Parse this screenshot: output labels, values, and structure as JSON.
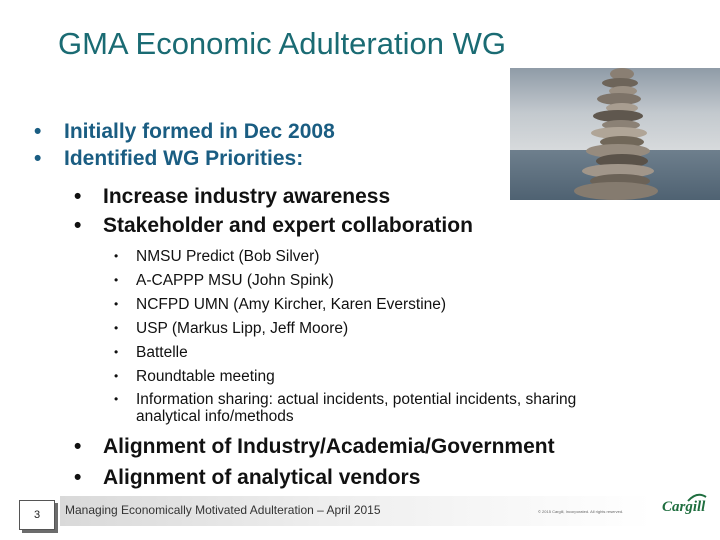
{
  "title": "GMA Economic Adulteration WG",
  "level1_top": [
    {
      "bullet": "•",
      "text": "Initially formed in Dec 2008"
    },
    {
      "bullet": "•",
      "text": "Identified WG Priorities:"
    }
  ],
  "level2_top": [
    {
      "bullet": "•",
      "text": "Increase industry awareness"
    },
    {
      "bullet": "•",
      "text": "Stakeholder and expert collaboration"
    }
  ],
  "level3": [
    {
      "bullet": "•",
      "text": "NMSU Predict (Bob Silver)"
    },
    {
      "bullet": "•",
      "text": "A-CAPPP MSU (John Spink)"
    },
    {
      "bullet": "•",
      "text": "NCFPD UMN (Amy Kircher, Karen Everstine)"
    },
    {
      "bullet": "•",
      "text": "USP (Markus Lipp, Jeff Moore)"
    },
    {
      "bullet": "•",
      "text": "Battelle"
    },
    {
      "bullet": "•",
      "text": "Roundtable meeting"
    },
    {
      "bullet": "•",
      "text": "Information sharing: actual incidents, potential incidents, sharing analytical info/methods"
    }
  ],
  "level2_bottom": [
    {
      "bullet": "•",
      "text": "Alignment of Industry/Academia/Government"
    },
    {
      "bullet": "•",
      "text": "Alignment of analytical vendors"
    }
  ],
  "footer": {
    "page_number": "3",
    "text": "Managing Economically Motivated Adulteration – April 2015",
    "copyright": "© 2015 Cargill, Incorporated. All rights reserved.",
    "logo_text": "Cargill"
  },
  "colors": {
    "title": "#1a6b73",
    "level1": "#1a5d82",
    "logo": "#1f6e3f"
  }
}
